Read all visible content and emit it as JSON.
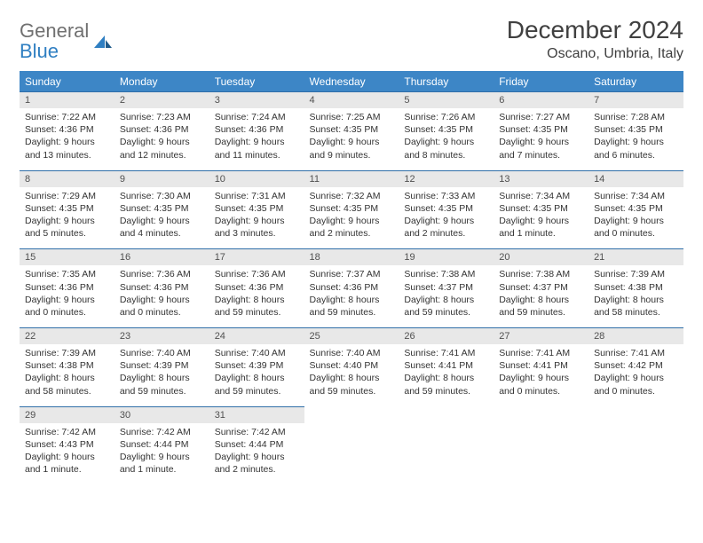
{
  "brand": {
    "name1": "General",
    "name2": "Blue"
  },
  "title": "December 2024",
  "location": "Oscano, Umbria, Italy",
  "colors": {
    "header_bg": "#3d86c6",
    "header_text": "#ffffff",
    "daynum_bg": "#e8e8e8",
    "border": "#2f6ea8",
    "brand_gray": "#707070",
    "brand_blue": "#2f7fc2"
  },
  "typography": {
    "title_fontsize": 28,
    "location_fontsize": 16,
    "dayhead_fontsize": 12,
    "daynum_fontsize": 11,
    "detail_fontsize": 10.5
  },
  "day_headers": [
    "Sunday",
    "Monday",
    "Tuesday",
    "Wednesday",
    "Thursday",
    "Friday",
    "Saturday"
  ],
  "weeks": [
    {
      "nums": [
        "1",
        "2",
        "3",
        "4",
        "5",
        "6",
        "7"
      ],
      "cells": [
        {
          "sunrise": "Sunrise: 7:22 AM",
          "sunset": "Sunset: 4:36 PM",
          "daylight1": "Daylight: 9 hours",
          "daylight2": "and 13 minutes."
        },
        {
          "sunrise": "Sunrise: 7:23 AM",
          "sunset": "Sunset: 4:36 PM",
          "daylight1": "Daylight: 9 hours",
          "daylight2": "and 12 minutes."
        },
        {
          "sunrise": "Sunrise: 7:24 AM",
          "sunset": "Sunset: 4:36 PM",
          "daylight1": "Daylight: 9 hours",
          "daylight2": "and 11 minutes."
        },
        {
          "sunrise": "Sunrise: 7:25 AM",
          "sunset": "Sunset: 4:35 PM",
          "daylight1": "Daylight: 9 hours",
          "daylight2": "and 9 minutes."
        },
        {
          "sunrise": "Sunrise: 7:26 AM",
          "sunset": "Sunset: 4:35 PM",
          "daylight1": "Daylight: 9 hours",
          "daylight2": "and 8 minutes."
        },
        {
          "sunrise": "Sunrise: 7:27 AM",
          "sunset": "Sunset: 4:35 PM",
          "daylight1": "Daylight: 9 hours",
          "daylight2": "and 7 minutes."
        },
        {
          "sunrise": "Sunrise: 7:28 AM",
          "sunset": "Sunset: 4:35 PM",
          "daylight1": "Daylight: 9 hours",
          "daylight2": "and 6 minutes."
        }
      ]
    },
    {
      "nums": [
        "8",
        "9",
        "10",
        "11",
        "12",
        "13",
        "14"
      ],
      "cells": [
        {
          "sunrise": "Sunrise: 7:29 AM",
          "sunset": "Sunset: 4:35 PM",
          "daylight1": "Daylight: 9 hours",
          "daylight2": "and 5 minutes."
        },
        {
          "sunrise": "Sunrise: 7:30 AM",
          "sunset": "Sunset: 4:35 PM",
          "daylight1": "Daylight: 9 hours",
          "daylight2": "and 4 minutes."
        },
        {
          "sunrise": "Sunrise: 7:31 AM",
          "sunset": "Sunset: 4:35 PM",
          "daylight1": "Daylight: 9 hours",
          "daylight2": "and 3 minutes."
        },
        {
          "sunrise": "Sunrise: 7:32 AM",
          "sunset": "Sunset: 4:35 PM",
          "daylight1": "Daylight: 9 hours",
          "daylight2": "and 2 minutes."
        },
        {
          "sunrise": "Sunrise: 7:33 AM",
          "sunset": "Sunset: 4:35 PM",
          "daylight1": "Daylight: 9 hours",
          "daylight2": "and 2 minutes."
        },
        {
          "sunrise": "Sunrise: 7:34 AM",
          "sunset": "Sunset: 4:35 PM",
          "daylight1": "Daylight: 9 hours",
          "daylight2": "and 1 minute."
        },
        {
          "sunrise": "Sunrise: 7:34 AM",
          "sunset": "Sunset: 4:35 PM",
          "daylight1": "Daylight: 9 hours",
          "daylight2": "and 0 minutes."
        }
      ]
    },
    {
      "nums": [
        "15",
        "16",
        "17",
        "18",
        "19",
        "20",
        "21"
      ],
      "cells": [
        {
          "sunrise": "Sunrise: 7:35 AM",
          "sunset": "Sunset: 4:36 PM",
          "daylight1": "Daylight: 9 hours",
          "daylight2": "and 0 minutes."
        },
        {
          "sunrise": "Sunrise: 7:36 AM",
          "sunset": "Sunset: 4:36 PM",
          "daylight1": "Daylight: 9 hours",
          "daylight2": "and 0 minutes."
        },
        {
          "sunrise": "Sunrise: 7:36 AM",
          "sunset": "Sunset: 4:36 PM",
          "daylight1": "Daylight: 8 hours",
          "daylight2": "and 59 minutes."
        },
        {
          "sunrise": "Sunrise: 7:37 AM",
          "sunset": "Sunset: 4:36 PM",
          "daylight1": "Daylight: 8 hours",
          "daylight2": "and 59 minutes."
        },
        {
          "sunrise": "Sunrise: 7:38 AM",
          "sunset": "Sunset: 4:37 PM",
          "daylight1": "Daylight: 8 hours",
          "daylight2": "and 59 minutes."
        },
        {
          "sunrise": "Sunrise: 7:38 AM",
          "sunset": "Sunset: 4:37 PM",
          "daylight1": "Daylight: 8 hours",
          "daylight2": "and 59 minutes."
        },
        {
          "sunrise": "Sunrise: 7:39 AM",
          "sunset": "Sunset: 4:38 PM",
          "daylight1": "Daylight: 8 hours",
          "daylight2": "and 58 minutes."
        }
      ]
    },
    {
      "nums": [
        "22",
        "23",
        "24",
        "25",
        "26",
        "27",
        "28"
      ],
      "cells": [
        {
          "sunrise": "Sunrise: 7:39 AM",
          "sunset": "Sunset: 4:38 PM",
          "daylight1": "Daylight: 8 hours",
          "daylight2": "and 58 minutes."
        },
        {
          "sunrise": "Sunrise: 7:40 AM",
          "sunset": "Sunset: 4:39 PM",
          "daylight1": "Daylight: 8 hours",
          "daylight2": "and 59 minutes."
        },
        {
          "sunrise": "Sunrise: 7:40 AM",
          "sunset": "Sunset: 4:39 PM",
          "daylight1": "Daylight: 8 hours",
          "daylight2": "and 59 minutes."
        },
        {
          "sunrise": "Sunrise: 7:40 AM",
          "sunset": "Sunset: 4:40 PM",
          "daylight1": "Daylight: 8 hours",
          "daylight2": "and 59 minutes."
        },
        {
          "sunrise": "Sunrise: 7:41 AM",
          "sunset": "Sunset: 4:41 PM",
          "daylight1": "Daylight: 8 hours",
          "daylight2": "and 59 minutes."
        },
        {
          "sunrise": "Sunrise: 7:41 AM",
          "sunset": "Sunset: 4:41 PM",
          "daylight1": "Daylight: 9 hours",
          "daylight2": "and 0 minutes."
        },
        {
          "sunrise": "Sunrise: 7:41 AM",
          "sunset": "Sunset: 4:42 PM",
          "daylight1": "Daylight: 9 hours",
          "daylight2": "and 0 minutes."
        }
      ]
    },
    {
      "nums": [
        "29",
        "30",
        "31",
        "",
        "",
        "",
        ""
      ],
      "cells": [
        {
          "sunrise": "Sunrise: 7:42 AM",
          "sunset": "Sunset: 4:43 PM",
          "daylight1": "Daylight: 9 hours",
          "daylight2": "and 1 minute."
        },
        {
          "sunrise": "Sunrise: 7:42 AM",
          "sunset": "Sunset: 4:44 PM",
          "daylight1": "Daylight: 9 hours",
          "daylight2": "and 1 minute."
        },
        {
          "sunrise": "Sunrise: 7:42 AM",
          "sunset": "Sunset: 4:44 PM",
          "daylight1": "Daylight: 9 hours",
          "daylight2": "and 2 minutes."
        },
        null,
        null,
        null,
        null
      ]
    }
  ]
}
